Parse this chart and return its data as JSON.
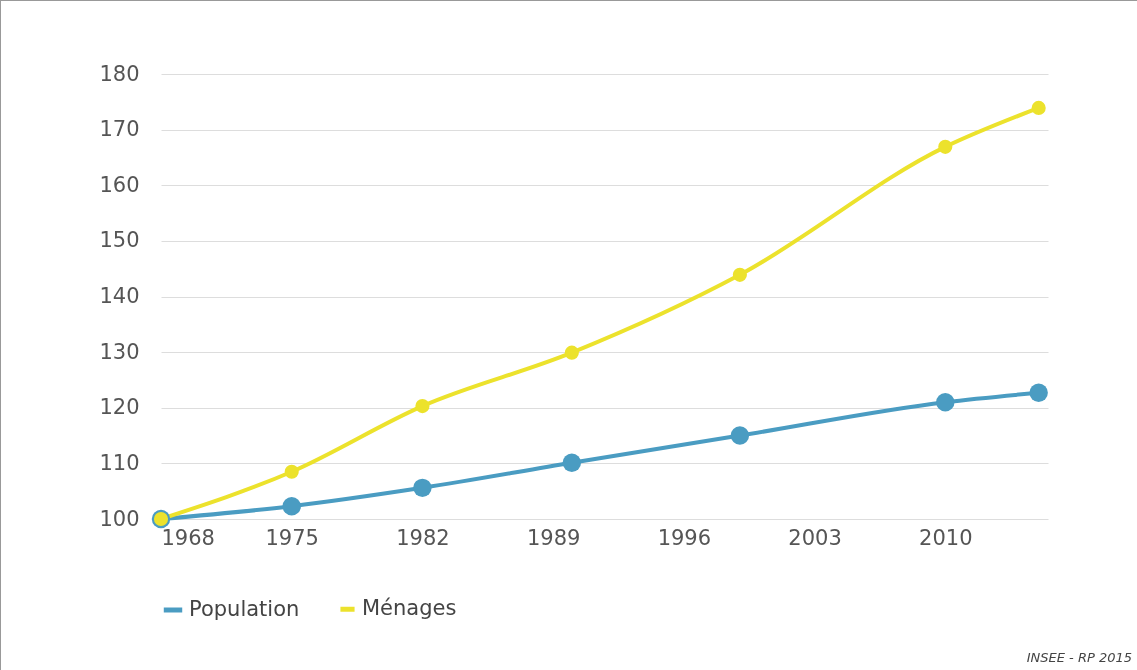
{
  "chart_data": {
    "type": "line",
    "x": [
      1968,
      1975,
      1982,
      1990,
      1999,
      2010,
      2015
    ],
    "series": [
      {
        "name": "Population",
        "color": "#4a9cc2",
        "values": [
          100,
          102.3,
          105.6,
          110.1,
          115.0,
          121.0,
          122.7
        ]
      },
      {
        "name": "Ménages",
        "color": "#ece22c",
        "values": [
          100,
          108.5,
          120.3,
          129.9,
          143.9,
          166.9,
          173.9
        ]
      }
    ],
    "xlim": [
      1968,
      2015.5
    ],
    "xticks": [
      1968,
      1975,
      1982,
      1989,
      1996,
      2003,
      2010
    ],
    "ylim": [
      100,
      180
    ],
    "yticks": [
      100,
      110,
      120,
      130,
      140,
      150,
      160,
      170,
      180
    ],
    "grid": "y",
    "legend": "bottom",
    "marker": "circle",
    "line_style": "solid",
    "annotations": [
      "INSEE - RP 2015"
    ]
  }
}
